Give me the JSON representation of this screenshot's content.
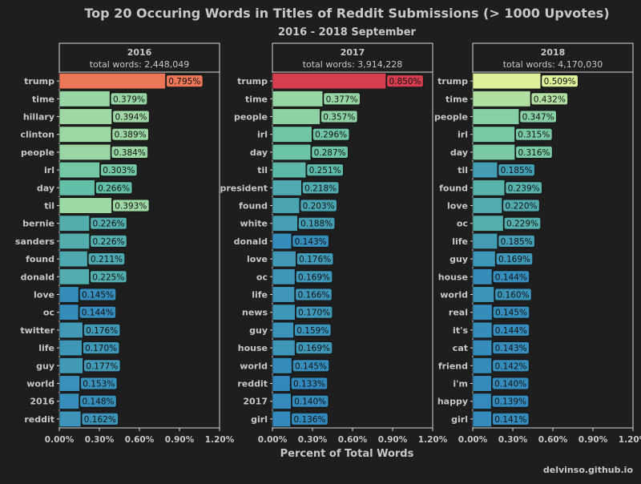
{
  "title": "Top 20 Occuring Words in Titles of Reddit Submissions (> 1000 Upvotes)",
  "subtitle": "2016 - 2018 September",
  "xlabel": "Percent of Total Words",
  "credit": "delvinso.github.io",
  "colors": {
    "background": "#1e1e1e",
    "panel_background": "#1e1e1e",
    "panel_border": "#d7d7d7",
    "text": "#c8c8c8",
    "label_text": "#111111"
  },
  "chart_data": {
    "type": "bar",
    "orientation": "horizontal",
    "grid": false,
    "xlim": [
      0,
      1.2
    ],
    "x_ticks": [
      "0.00%",
      "0.30%",
      "0.60%",
      "0.90%",
      "1.20%"
    ],
    "panels": [
      {
        "year": "2016",
        "total_label": "total words: 2,448,049",
        "categories": [
          "trump",
          "time",
          "hillary",
          "clinton",
          "people",
          "irl",
          "day",
          "til",
          "bernie",
          "sanders",
          "found",
          "donald",
          "love",
          "oc",
          "twitter",
          "life",
          "guy",
          "world",
          "2016",
          "reddit"
        ],
        "values": [
          0.795,
          0.379,
          0.394,
          0.389,
          0.384,
          0.303,
          0.266,
          0.393,
          0.226,
          0.226,
          0.211,
          0.225,
          0.145,
          0.144,
          0.176,
          0.17,
          0.177,
          0.153,
          0.148,
          0.162
        ],
        "data_labels": [
          "0.795%",
          "0.379%",
          "0.394%",
          "0.389%",
          "0.384%",
          "0.303%",
          "0.266%",
          "0.393%",
          "0.226%",
          "0.226%",
          "0.211%",
          "0.225%",
          "0.145%",
          "0.144%",
          "0.176%",
          "0.170%",
          "0.177%",
          "0.153%",
          "0.148%",
          "0.162%"
        ]
      },
      {
        "year": "2017",
        "total_label": "total words: 3,914,228",
        "categories": [
          "trump",
          "time",
          "people",
          "irl",
          "day",
          "til",
          "president",
          "found",
          "white",
          "donald",
          "love",
          "oc",
          "life",
          "news",
          "guy",
          "house",
          "world",
          "reddit",
          "2017",
          "girl"
        ],
        "values": [
          0.85,
          0.377,
          0.357,
          0.296,
          0.287,
          0.251,
          0.218,
          0.203,
          0.188,
          0.143,
          0.176,
          0.169,
          0.166,
          0.17,
          0.159,
          0.169,
          0.145,
          0.133,
          0.14,
          0.136
        ],
        "data_labels": [
          "0.850%",
          "0.377%",
          "0.357%",
          "0.296%",
          "0.287%",
          "0.251%",
          "0.218%",
          "0.203%",
          "0.188%",
          "0.143%",
          "0.176%",
          "0.169%",
          "0.166%",
          "0.170%",
          "0.159%",
          "0.169%",
          "0.145%",
          "0.133%",
          "0.140%",
          "0.136%"
        ]
      },
      {
        "year": "2018",
        "total_label": "total words: 4,170,030",
        "categories": [
          "trump",
          "time",
          "people",
          "irl",
          "day",
          "til",
          "found",
          "love",
          "oc",
          "life",
          "guy",
          "house",
          "world",
          "real",
          "it's",
          "cat",
          "friend",
          "i'm",
          "happy",
          "girl"
        ],
        "values": [
          0.509,
          0.432,
          0.347,
          0.315,
          0.316,
          0.185,
          0.239,
          0.22,
          0.229,
          0.185,
          0.169,
          0.144,
          0.16,
          0.145,
          0.144,
          0.143,
          0.142,
          0.14,
          0.139,
          0.141
        ],
        "data_labels": [
          "0.509%",
          "0.432%",
          "0.347%",
          "0.315%",
          "0.316%",
          "0.185%",
          "0.239%",
          "0.220%",
          "0.229%",
          "0.185%",
          "0.169%",
          "0.144%",
          "0.160%",
          "0.145%",
          "0.144%",
          "0.143%",
          "0.142%",
          "0.140%",
          "0.139%",
          "0.141%"
        ]
      }
    ]
  }
}
